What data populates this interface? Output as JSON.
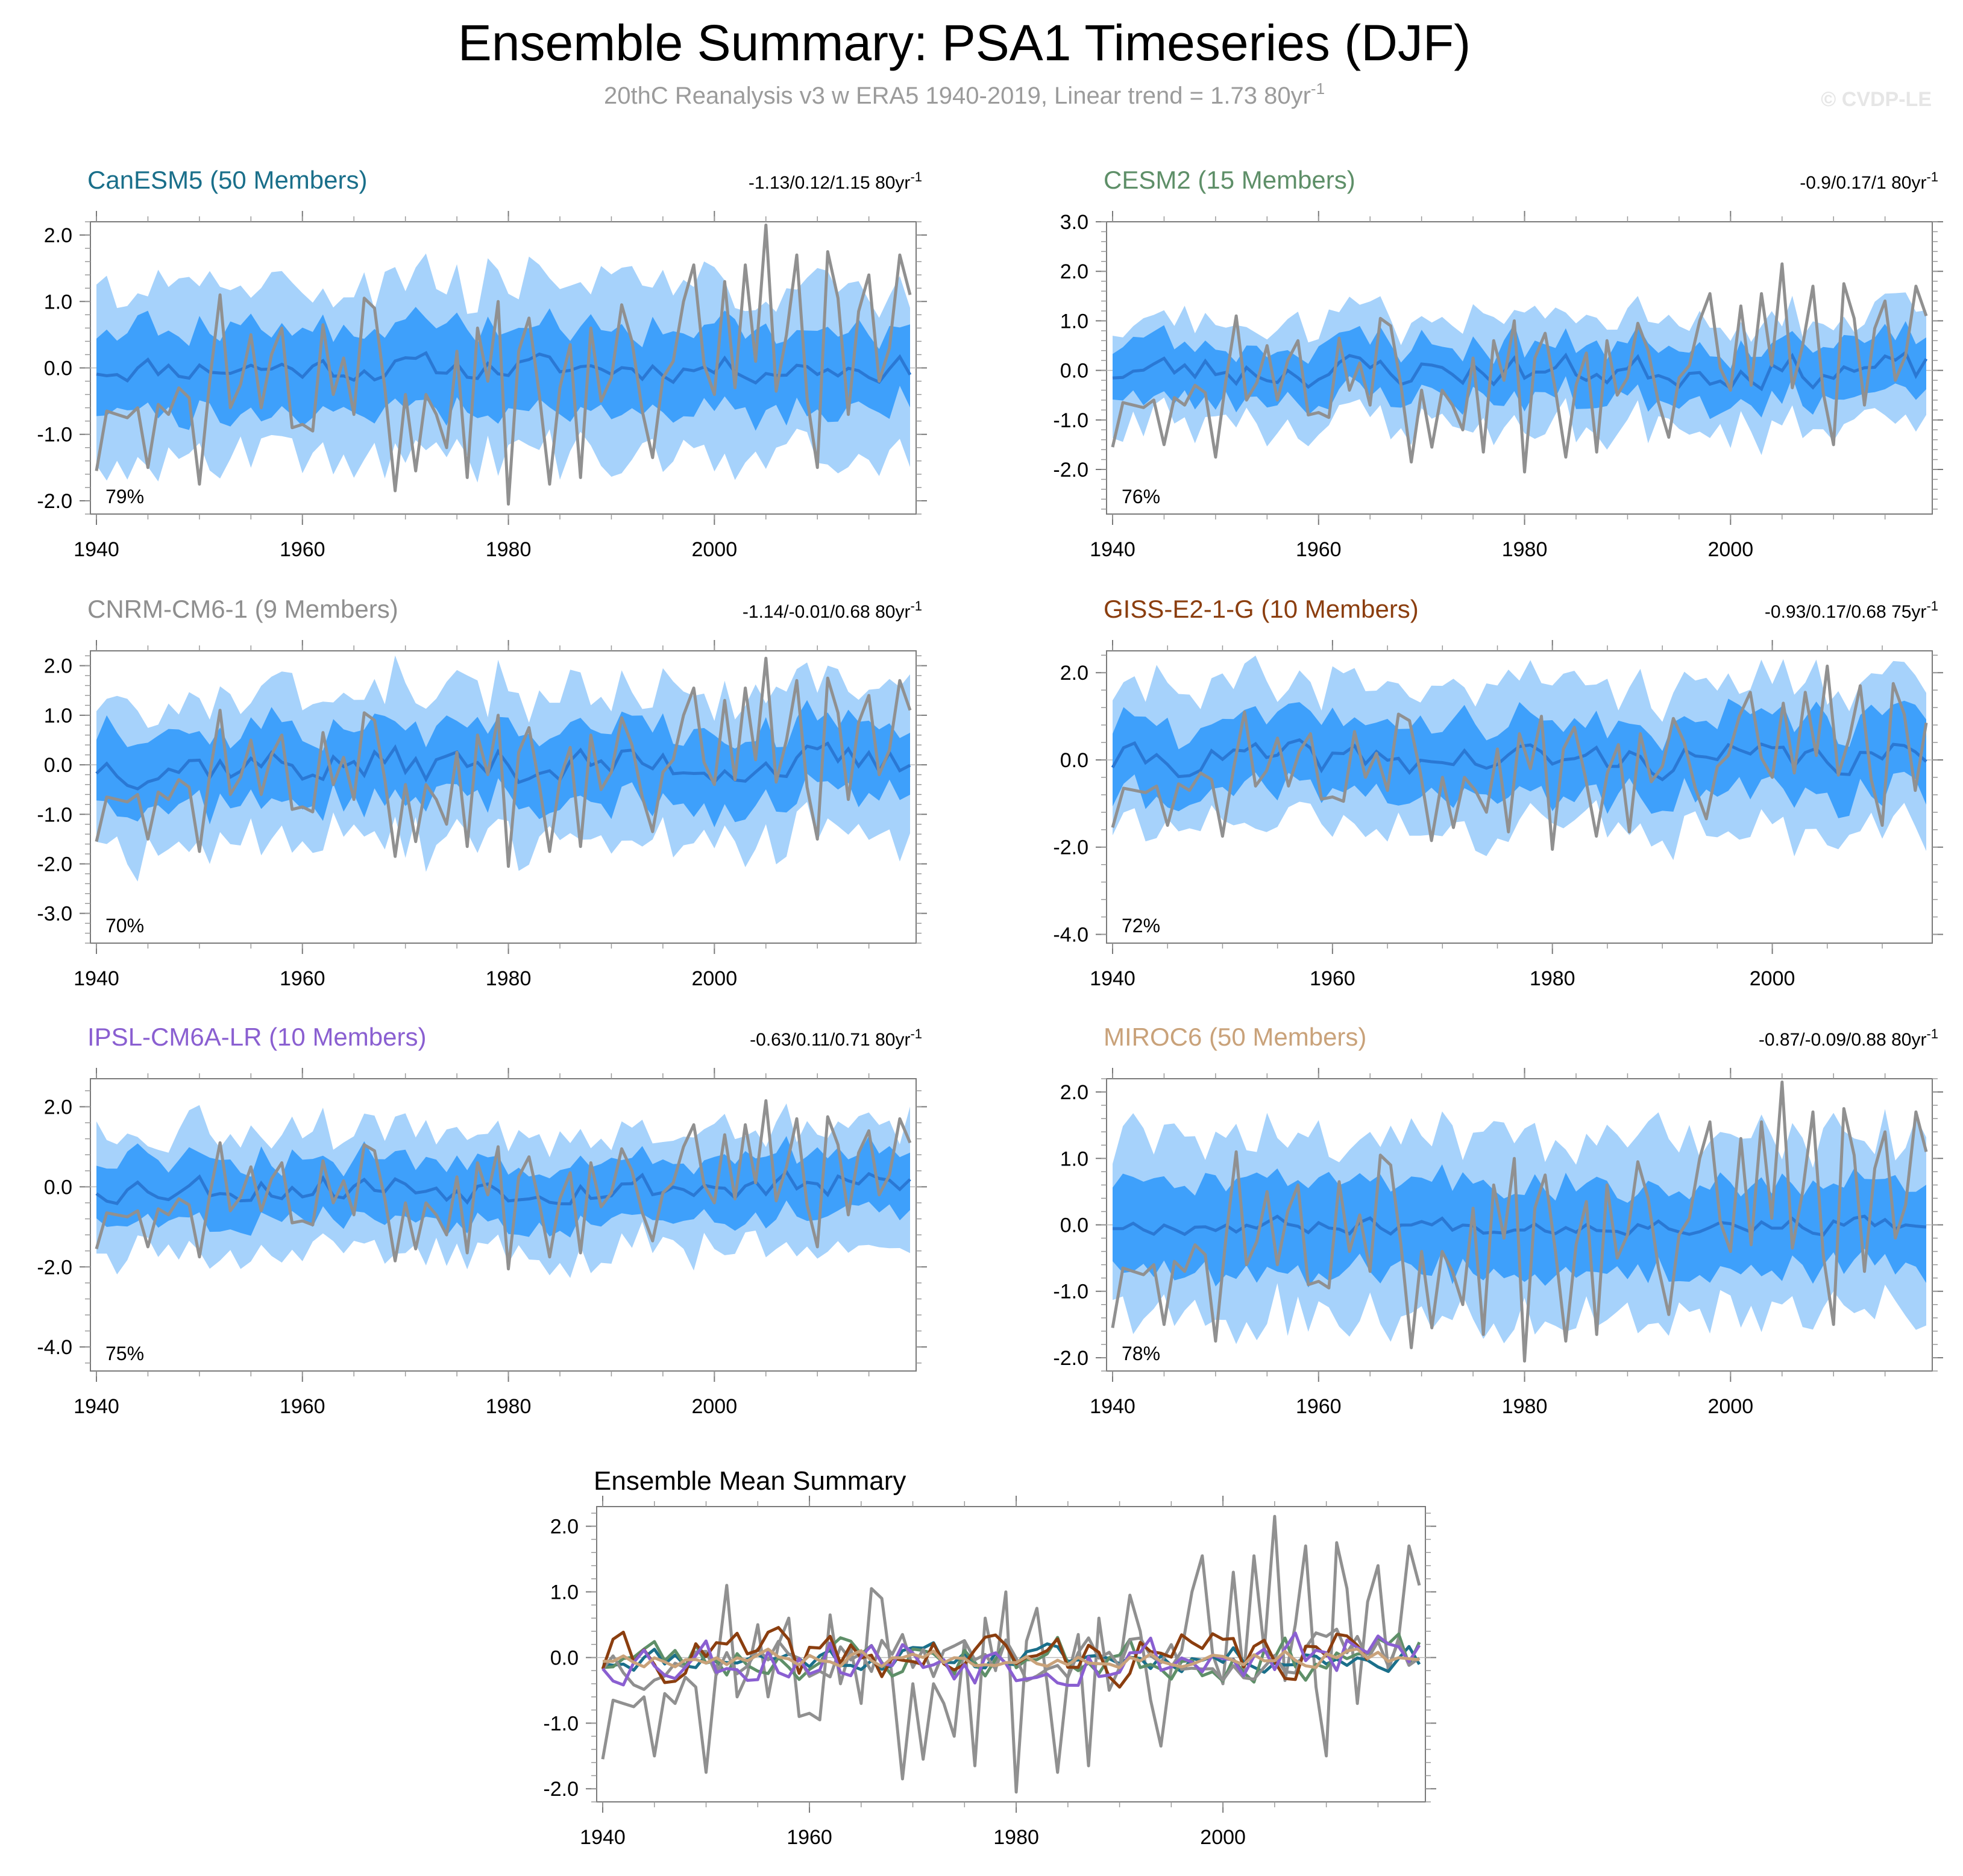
{
  "title": "Ensemble Summary: PSA1 Timeseries (DJF)",
  "subtitle": "20thC Reanalysis v3 w ERA5 1940-2019, Linear trend = 1.73 80yr",
  "subtitle_sup": "-1",
  "watermark": "© CVDP-LE",
  "chart_data": [
    {
      "type": "line",
      "title": "CanESM5 (50 Members)",
      "title_color": "#1a6f8a",
      "trend": "-1.13/0.12/1.15 80yr",
      "trend_sup": "-1",
      "percent": "79%",
      "ylim": [
        -2.2,
        2.2
      ],
      "yticks": [
        -2.0,
        -1.0,
        0.0,
        1.0,
        2.0
      ],
      "ytick_labels": [
        "-2.0",
        "-1.0",
        "0.0",
        "1.0",
        "2.0"
      ],
      "xlim": [
        1940,
        2019
      ],
      "xticks": [
        1940,
        1960,
        1980,
        2000
      ],
      "ens_mean_amp": 0.18,
      "inner_halfwidth": 0.62,
      "outer_halfwidth": 1.25,
      "seed": 11
    },
    {
      "type": "line",
      "title": "CESM2 (15 Members)",
      "title_color": "#5e8f68",
      "trend": "-0.9/0.17/1 80yr",
      "trend_sup": "-1",
      "percent": "76%",
      "ylim": [
        -2.9,
        3.0
      ],
      "yticks": [
        -2.0,
        -1.0,
        0.0,
        1.0,
        2.0,
        3.0
      ],
      "ytick_labels": [
        "-2.0",
        "-1.0",
        "0.0",
        "1.0",
        "2.0",
        "3.0"
      ],
      "xlim": [
        1940,
        2019
      ],
      "xticks": [
        1940,
        1960,
        1980,
        2000
      ],
      "ens_mean_amp": 0.3,
      "inner_halfwidth": 0.55,
      "outer_halfwidth": 1.05,
      "seed": 23
    },
    {
      "type": "line",
      "title": "CNRM-CM6-1 (9 Members)",
      "title_color": "#8f8f8f",
      "trend": "-1.14/-0.01/0.68 80yr",
      "trend_sup": "-1",
      "percent": "70%",
      "ylim": [
        -3.6,
        2.3
      ],
      "yticks": [
        -3.0,
        -2.0,
        -1.0,
        0.0,
        1.0,
        2.0
      ],
      "ytick_labels": [
        "-3.0",
        "-2.0",
        "-1.0",
        "0.0",
        "1.0",
        "2.0"
      ],
      "xlim": [
        1940,
        2019
      ],
      "xticks": [
        1940,
        1960,
        1980,
        2000
      ],
      "ens_mean_amp": 0.35,
      "inner_halfwidth": 0.75,
      "outer_halfwidth": 1.45,
      "seed": 37
    },
    {
      "type": "line",
      "title": "GISS-E2-1-G (10 Members)",
      "title_color": "#8b3e0f",
      "trend": "-0.93/0.17/0.68 75yr",
      "trend_sup": "-1",
      "percent": "72%",
      "ylim": [
        -4.2,
        2.5
      ],
      "yticks": [
        -4.0,
        -2.0,
        0.0,
        2.0
      ],
      "ytick_labels": [
        "-4.0",
        "-2.0",
        "0.0",
        "2.0"
      ],
      "xlim": [
        1940,
        2014
      ],
      "xticks": [
        1940,
        1960,
        1980,
        2000
      ],
      "ens_mean_amp": 0.35,
      "inner_halfwidth": 0.85,
      "outer_halfwidth": 1.6,
      "seed": 41
    },
    {
      "type": "line",
      "title": "IPSL-CM6A-LR (10 Members)",
      "title_color": "#8a5fd1",
      "trend": "-0.63/0.11/0.71 80yr",
      "trend_sup": "-1",
      "percent": "75%",
      "ylim": [
        -4.6,
        2.7
      ],
      "yticks": [
        -4.0,
        -2.0,
        0.0,
        2.0
      ],
      "ytick_labels": [
        "-4.0",
        "-2.0",
        "0.0",
        "2.0"
      ],
      "xlim": [
        1940,
        2019
      ],
      "xticks": [
        1940,
        1960,
        1980,
        2000
      ],
      "ens_mean_amp": 0.35,
      "inner_halfwidth": 0.75,
      "outer_halfwidth": 1.45,
      "seed": 53
    },
    {
      "type": "line",
      "title": "MIROC6 (50 Members)",
      "title_color": "#c9a27a",
      "trend": "-0.87/-0.09/0.88 80yr",
      "trend_sup": "-1",
      "percent": "78%",
      "ylim": [
        -2.2,
        2.2
      ],
      "yticks": [
        -2.0,
        -1.0,
        0.0,
        1.0,
        2.0
      ],
      "ytick_labels": [
        "-2.0",
        "-1.0",
        "0.0",
        "1.0",
        "2.0"
      ],
      "xlim": [
        1940,
        2019
      ],
      "xticks": [
        1940,
        1960,
        1980,
        2000
      ],
      "ens_mean_amp": 0.12,
      "inner_halfwidth": 0.65,
      "outer_halfwidth": 1.3,
      "seed": 67
    },
    {
      "type": "line",
      "title": "Ensemble Mean Summary",
      "ylim": [
        -2.2,
        2.3
      ],
      "yticks": [
        -2.0,
        -1.0,
        0.0,
        1.0,
        2.0
      ],
      "ytick_labels": [
        "-2.0",
        "-1.0",
        "0.0",
        "1.0",
        "2.0"
      ],
      "xlim": [
        1940,
        2019
      ],
      "xticks": [
        1940,
        1960,
        1980,
        2000
      ],
      "series": [
        {
          "name": "CanESM5",
          "color": "#1a6f8a",
          "amp": 0.18,
          "seed": 11,
          "end": 2019
        },
        {
          "name": "CESM2",
          "color": "#5e8f68",
          "amp": 0.3,
          "seed": 23,
          "end": 2019
        },
        {
          "name": "CNRM-CM6-1",
          "color": "#8f8f8f",
          "amp": 0.35,
          "seed": 37,
          "end": 2019
        },
        {
          "name": "GISS-E2-1-G",
          "color": "#8b3e0f",
          "amp": 0.35,
          "seed": 41,
          "end": 2014
        },
        {
          "name": "IPSL-CM6A-LR",
          "color": "#8a5fd1",
          "amp": 0.35,
          "seed": 53,
          "end": 2019
        },
        {
          "name": "MIROC6",
          "color": "#c9a27a",
          "amp": 0.12,
          "seed": 67,
          "end": 2019
        }
      ]
    },
    {
      "type": "line",
      "name": "Observations",
      "source": "20thC Reanalysis v3 w ERA5",
      "color": "#909090",
      "x_start": 1940,
      "values": [
        -1.55,
        -0.65,
        -0.7,
        -0.75,
        -0.6,
        -1.5,
        -0.55,
        -0.7,
        -0.3,
        -0.45,
        -1.75,
        -0.2,
        1.1,
        -0.6,
        -0.25,
        0.5,
        -0.6,
        0.2,
        0.6,
        -0.9,
        -0.85,
        -0.95,
        0.65,
        -0.4,
        0.15,
        -0.7,
        1.05,
        0.9,
        -0.3,
        -1.85,
        -0.4,
        -1.55,
        -0.4,
        -0.7,
        -1.2,
        0.25,
        -1.65,
        0.6,
        -0.2,
        1.0,
        -2.05,
        0.25,
        0.75,
        -0.4,
        -1.75,
        -0.3,
        0.35,
        -1.65,
        0.6,
        -0.5,
        -0.15,
        0.95,
        0.4,
        -0.65,
        -1.35,
        -0.15,
        0.1,
        1.0,
        1.55,
        0.05,
        -0.4,
        1.3,
        -0.3,
        1.55,
        0.1,
        2.15,
        -0.35,
        0.5,
        1.7,
        -0.45,
        -1.5,
        1.75,
        1.05,
        -0.7,
        0.85,
        1.4,
        -0.2,
        0.3,
        1.7,
        1.1
      ]
    }
  ]
}
